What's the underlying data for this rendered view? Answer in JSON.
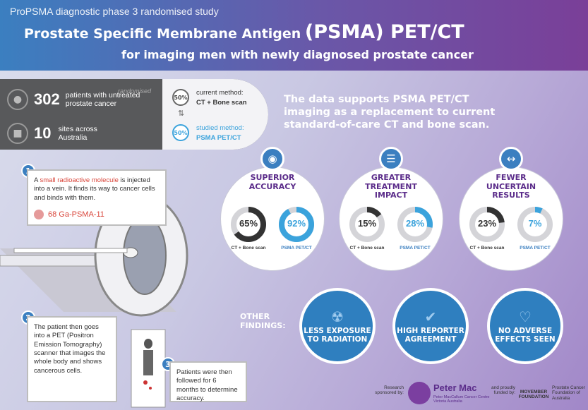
{
  "header": {
    "subtitle": "ProPSMA diagnostic phase 3 randomised study",
    "title_a": "Prostate Specific Membrane Antigen",
    "title_b": "(PSMA) PET/CT",
    "tagline": "for imaging men with newly diagnosed prostate cancer"
  },
  "stats": {
    "patients_num": "302",
    "patients_text": "patients with untreated prostate cancer",
    "randomised": "randomised",
    "sites_num": "10",
    "sites_text": "sites across Australia",
    "current_pct": "50%",
    "current_label": "current method:",
    "current_value": "CT + Bone scan",
    "studied_pct": "50%",
    "studied_label": "studied method:",
    "studied_value": "PSMA PET/CT"
  },
  "headline": "The data supports PSMA PET/CT imaging as a replacement to current standard-of-care CT and bone scan.",
  "steps": [
    {
      "num": "1",
      "text_pre": "A ",
      "text_hl": "small radioactive molecule",
      "text_post": " is injected into a vein. It finds its way to cancer cells and binds with them.",
      "tracer": "68 Ga-PSMA-11"
    },
    {
      "num": "2",
      "text": "The patient then goes into a PET (Positron Emission Tomography) scanner that images the whole body and shows cancerous cells."
    },
    {
      "num": "3",
      "text": "Patients were then followed for 6 months to determine accuracy."
    }
  ],
  "categories": [
    {
      "title": "SUPERIOR ACCURACY",
      "icon": "eye-icon",
      "ct_value": 65,
      "ct_label": "65%",
      "ct_caption": "CT + Bone scan",
      "psma_value": 92,
      "psma_label": "92%",
      "psma_caption": "PSMA PET/CT"
    },
    {
      "title": "GREATER TREATMENT IMPACT",
      "icon": "clipboard-icon",
      "ct_value": 15,
      "ct_label": "15%",
      "ct_caption": "CT + Bone scan",
      "psma_value": 28,
      "psma_label": "28%",
      "psma_caption": "PSMA PET/CT"
    },
    {
      "title": "FEWER UNCERTAIN RESULTS",
      "icon": "arrows-icon",
      "ct_value": 23,
      "ct_label": "23%",
      "ct_caption": "CT + Bone scan",
      "psma_value": 7,
      "psma_label": "7%",
      "psma_caption": "PSMA PET/CT"
    }
  ],
  "other_findings_label": "OTHER FINDINGS:",
  "findings": [
    {
      "text": "LESS EXPOSURE TO RADIATION",
      "icon": "radiation-icon"
    },
    {
      "text": "HIGH REPORTER AGREEMENT",
      "icon": "thumbs-up-icon"
    },
    {
      "text": "NO ADVERSE EFFECTS SEEN",
      "icon": "heart-icon"
    }
  ],
  "sponsors": {
    "research_text": "Research sponsored by:",
    "petermac": "Peter Mac",
    "petermac_sub": "Peter MacCallum Cancer Centre Victoria Australia",
    "funded_text": "and proudly funded by:",
    "movember": "MOVEMBER FOUNDATION",
    "pcfa": "Prostate Cancer Foundation of Australia"
  },
  "colors": {
    "blue": "#3ba3dc",
    "dark": "#333333",
    "purple": "#5b2c8a",
    "finding_blue": "#2f7fbf"
  }
}
